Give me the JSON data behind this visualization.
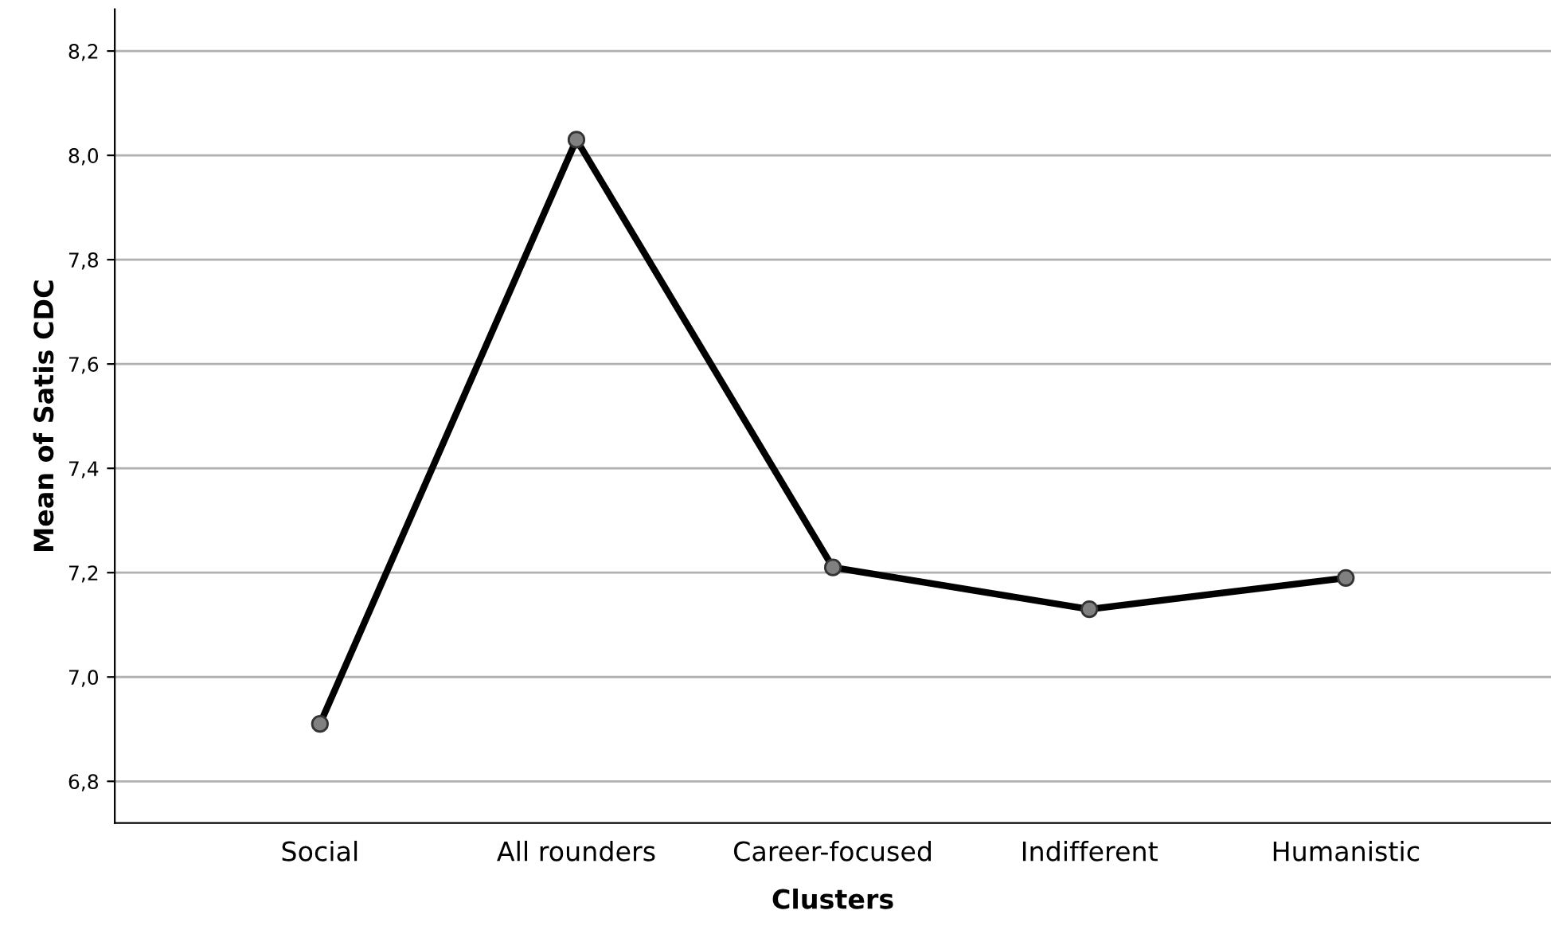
{
  "chart_data": {
    "type": "line",
    "xlabel": "Clusters",
    "ylabel": "Mean of Satis CDC",
    "categories": [
      "Social",
      "All rounders",
      "Career-focused",
      "Indifferent",
      "Humanistic"
    ],
    "series": [
      {
        "color": "#000000",
        "values": [
          6.91,
          8.03,
          7.21,
          7.13,
          7.19
        ]
      }
    ],
    "ylim": [
      6.72,
      8.28
    ],
    "yticks": [
      {
        "value": 6.8,
        "label": "6,8"
      },
      {
        "value": 7.0,
        "label": "7,0"
      },
      {
        "value": 7.2,
        "label": "7,2"
      },
      {
        "value": 7.4,
        "label": "7,4"
      },
      {
        "value": 7.6,
        "label": "7,6"
      },
      {
        "value": 7.8,
        "label": "7,8"
      },
      {
        "value": 8.0,
        "label": "8,0"
      },
      {
        "value": 8.2,
        "label": "8,2"
      }
    ],
    "grid": "y",
    "marker": "circle",
    "line_style": "solid"
  }
}
